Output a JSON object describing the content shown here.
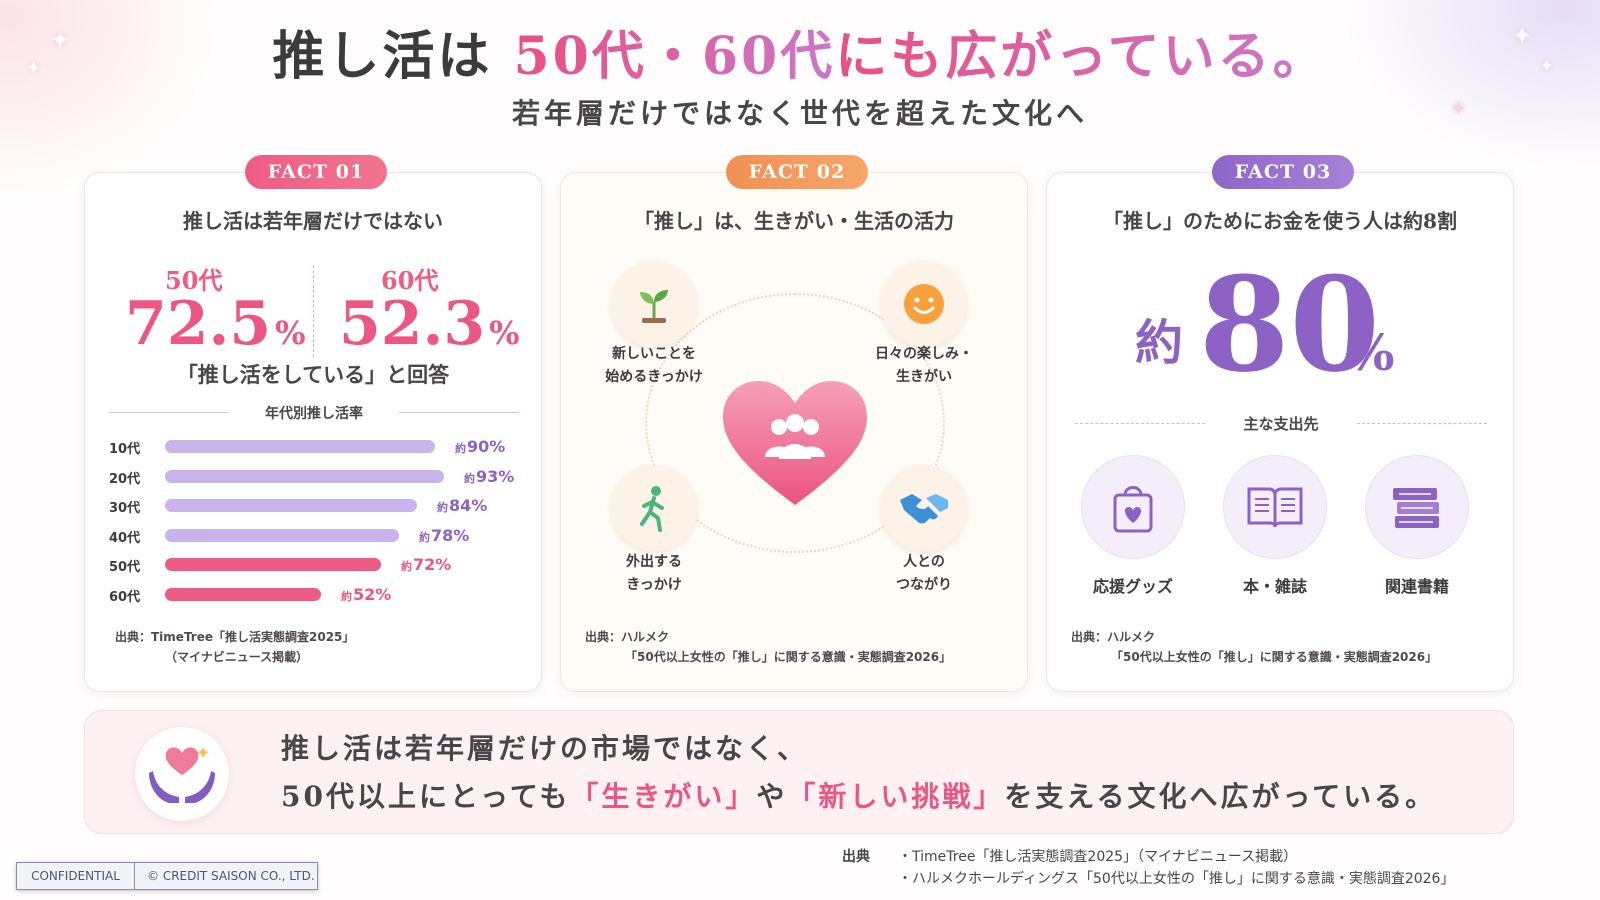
{
  "header": {
    "title_part1": "推し活は",
    "title_part2": "50代・60代",
    "title_part3": "にも広がっている。",
    "subtitle": "若年層だけではなく世代を超えた文化へ"
  },
  "fact1": {
    "badge": "FACT 01",
    "heading": "推し活は若年層だけではない",
    "age_a": "50代",
    "value_a": "72.5",
    "age_b": "60代",
    "value_b": "52.3",
    "unit": "%",
    "answer": "「推し活をしている」と回答",
    "chart_title": "年代別推し活率",
    "source_line1": "出典：TimeTree「推し活実態調査2025」",
    "source_line2": "（マイナビニュース掲載）"
  },
  "chart_data": {
    "type": "bar",
    "title": "年代別推し活率",
    "categories": [
      "10代",
      "20代",
      "30代",
      "40代",
      "50代",
      "60代"
    ],
    "values": [
      90,
      93,
      84,
      78,
      72,
      52
    ],
    "value_labels": [
      "90%",
      "93%",
      "84%",
      "78%",
      "72%",
      "52%"
    ],
    "value_prefix": "約",
    "colors": [
      "#c8b4ea",
      "#c8b4ea",
      "#c8b4ea",
      "#c8b4ea",
      "#ee5b85",
      "#ee5b85"
    ],
    "label_colors": [
      "#8c63c4",
      "#8c63c4",
      "#8c63c4",
      "#8c63c4",
      "#ec5683",
      "#ec5683"
    ],
    "orientation": "horizontal",
    "xlim": [
      0,
      100
    ]
  },
  "fact2": {
    "badge": "FACT 02",
    "heading": "「推し」は、生きがい・生活の活力",
    "item1_line1": "新しいことを",
    "item1_line2": "始めるきっかけ",
    "item2_line1": "日々の楽しみ・",
    "item2_line2": "生きがい",
    "item3_line1": "外出する",
    "item3_line2": "きっかけ",
    "item4_line1": "人との",
    "item4_line2": "つながり",
    "source_line1": "出典：ハルメク",
    "source_line2": "「50代以上女性の「推し」に関する意識・実態調査2026」"
  },
  "fact3": {
    "badge": "FACT 03",
    "heading": "「推し」のためにお金を使う人は約8割",
    "approx": "約",
    "value": "80",
    "unit": "%",
    "spend_title": "主な支出先",
    "spend1": "応援グッズ",
    "spend2": "本・雑誌",
    "spend3": "関連書籍",
    "source_line1": "出典：ハルメク",
    "source_line2": "「50代以上女性の「推し」に関する意識・実態調査2026」"
  },
  "bottom": {
    "line1": "推し活は若年層だけの市場ではなく、",
    "line2_a": "50代以上にとっても",
    "line2_hl1": "「生きがい」",
    "line2_b": "や",
    "line2_hl2": "「新しい挑戦」",
    "line2_c": "を支える文化へ広がっている。"
  },
  "footer": {
    "source_label": "出典",
    "source1": "・TimeTree「推し活実態調査2025」（マイナビニュース掲載）",
    "source2": "・ハルメクホールディングス「50代以上女性の「推し」に関する意識・実態調査2026」",
    "confidential": "CONFIDENTIAL",
    "copyright": "© CREDIT SAISON CO., LTD."
  },
  "colors": {
    "pink": "#ec5683",
    "orange": "#f09052",
    "purple": "#8c63c4"
  }
}
